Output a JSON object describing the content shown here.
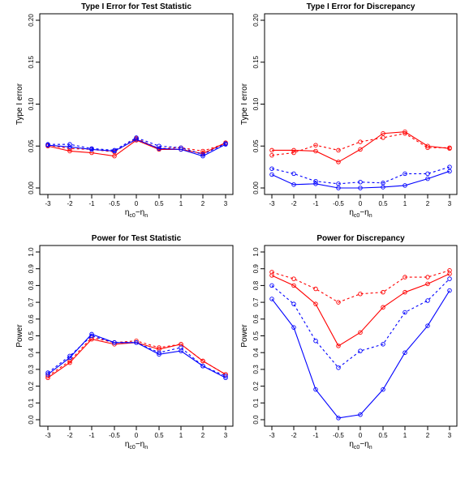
{
  "chart_data": [
    {
      "type": "line",
      "title": "Type I Error for Test Statistic",
      "xlabel": "η_c0−η_n",
      "ylabel": "Type I error",
      "x": [
        -3,
        -2,
        -1,
        -0.5,
        0,
        0.5,
        1,
        2,
        3
      ],
      "x_tick_labels": [
        "-3",
        "-2",
        "-1",
        "-0.5",
        "0",
        "0.5",
        "1",
        "2",
        "3"
      ],
      "ylim": [
        0,
        0.2
      ],
      "y_ticks": [
        0.0,
        0.05,
        0.1,
        0.15,
        0.2
      ],
      "y_tick_labels": [
        "0.00",
        "0.05",
        "0.10",
        "0.15",
        "0.20"
      ],
      "grid": false,
      "series": [
        {
          "color": "#ff0000",
          "line_style": "solid",
          "values": [
            0.05,
            0.044,
            0.042,
            0.038,
            0.057,
            0.046,
            0.046,
            0.041,
            0.054
          ]
        },
        {
          "color": "#ff0000",
          "line_style": "dashed",
          "values": [
            0.051,
            0.047,
            0.046,
            0.043,
            0.059,
            0.047,
            0.048,
            0.044,
            0.053
          ]
        },
        {
          "color": "#0000ff",
          "line_style": "solid",
          "values": [
            0.051,
            0.049,
            0.046,
            0.044,
            0.058,
            0.047,
            0.046,
            0.038,
            0.052
          ]
        },
        {
          "color": "#0000ff",
          "line_style": "dashed",
          "values": [
            0.052,
            0.052,
            0.047,
            0.045,
            0.06,
            0.05,
            0.048,
            0.04,
            0.053
          ]
        }
      ]
    },
    {
      "type": "line",
      "title": "Type I Error for Discrepancy",
      "xlabel": "η_c0−η_n",
      "ylabel": "Type I error",
      "x": [
        -3,
        -2,
        -1,
        -0.5,
        0,
        0.5,
        1,
        2,
        3
      ],
      "x_tick_labels": [
        "-3",
        "-2",
        "-1",
        "-0.5",
        "0",
        "0.5",
        "1",
        "2",
        "3"
      ],
      "ylim": [
        0,
        0.2
      ],
      "y_ticks": [
        0.0,
        0.05,
        0.1,
        0.15,
        0.2
      ],
      "y_tick_labels": [
        "0.00",
        "0.05",
        "0.10",
        "0.15",
        "0.20"
      ],
      "grid": false,
      "series": [
        {
          "color": "#ff0000",
          "line_style": "solid",
          "values": [
            0.045,
            0.045,
            0.044,
            0.031,
            0.046,
            0.065,
            0.067,
            0.05,
            0.047
          ]
        },
        {
          "color": "#ff0000",
          "line_style": "dashed",
          "values": [
            0.039,
            0.042,
            0.051,
            0.045,
            0.055,
            0.06,
            0.065,
            0.048,
            0.048
          ]
        },
        {
          "color": "#0000ff",
          "line_style": "solid",
          "values": [
            0.016,
            0.004,
            0.005,
            0.0,
            0.0,
            0.001,
            0.003,
            0.011,
            0.02
          ]
        },
        {
          "color": "#0000ff",
          "line_style": "dashed",
          "values": [
            0.023,
            0.017,
            0.008,
            0.005,
            0.007,
            0.006,
            0.017,
            0.017,
            0.025
          ]
        }
      ]
    },
    {
      "type": "line",
      "title": "Power for Test Statistic",
      "xlabel": "η_c0−η_n",
      "ylabel": "Power",
      "x": [
        -3,
        -2,
        -1,
        -0.5,
        0,
        0.5,
        1,
        2,
        3
      ],
      "x_tick_labels": [
        "-3",
        "-2",
        "-1",
        "-0.5",
        "0",
        "0.5",
        "1",
        "2",
        "3"
      ],
      "ylim": [
        0,
        1
      ],
      "y_ticks": [
        0.0,
        0.1,
        0.2,
        0.3,
        0.4,
        0.5,
        0.6,
        0.7,
        0.8,
        0.9,
        1.0
      ],
      "y_tick_labels": [
        "0.0",
        "0.1",
        "0.2",
        "0.3",
        "0.4",
        "0.5",
        "0.6",
        "0.7",
        "0.8",
        "0.9",
        "1.0"
      ],
      "grid": false,
      "series": [
        {
          "color": "#ff0000",
          "line_style": "solid",
          "values": [
            0.25,
            0.34,
            0.48,
            0.45,
            0.46,
            0.42,
            0.45,
            0.35,
            0.27
          ]
        },
        {
          "color": "#ff0000",
          "line_style": "dashed",
          "values": [
            0.26,
            0.35,
            0.49,
            0.46,
            0.47,
            0.43,
            0.45,
            0.35,
            0.27
          ]
        },
        {
          "color": "#0000ff",
          "line_style": "solid",
          "values": [
            0.27,
            0.37,
            0.51,
            0.46,
            0.46,
            0.39,
            0.41,
            0.32,
            0.25
          ]
        },
        {
          "color": "#0000ff",
          "line_style": "dashed",
          "values": [
            0.28,
            0.38,
            0.5,
            0.46,
            0.46,
            0.4,
            0.43,
            0.32,
            0.26
          ]
        }
      ]
    },
    {
      "type": "line",
      "title": "Power for Discrepancy",
      "xlabel": "η_c0−η_n",
      "ylabel": "Power",
      "x": [
        -3,
        -2,
        -1,
        -0.5,
        0,
        0.5,
        1,
        2,
        3
      ],
      "x_tick_labels": [
        "-3",
        "-2",
        "-1",
        "-0.5",
        "0",
        "0.5",
        "1",
        "2",
        "3"
      ],
      "ylim": [
        0,
        1
      ],
      "y_ticks": [
        0.0,
        0.1,
        0.2,
        0.3,
        0.4,
        0.5,
        0.6,
        0.7,
        0.8,
        0.9,
        1.0
      ],
      "y_tick_labels": [
        "0.0",
        "0.1",
        "0.2",
        "0.3",
        "0.4",
        "0.5",
        "0.6",
        "0.7",
        "0.8",
        "0.9",
        "1.0"
      ],
      "grid": false,
      "series": [
        {
          "color": "#ff0000",
          "line_style": "solid",
          "values": [
            0.86,
            0.8,
            0.69,
            0.44,
            0.52,
            0.67,
            0.76,
            0.81,
            0.87
          ]
        },
        {
          "color": "#ff0000",
          "line_style": "dashed",
          "values": [
            0.88,
            0.84,
            0.78,
            0.7,
            0.75,
            0.76,
            0.85,
            0.85,
            0.89
          ]
        },
        {
          "color": "#0000ff",
          "line_style": "solid",
          "values": [
            0.72,
            0.55,
            0.18,
            0.01,
            0.03,
            0.18,
            0.4,
            0.56,
            0.77
          ]
        },
        {
          "color": "#0000ff",
          "line_style": "dashed",
          "values": [
            0.8,
            0.69,
            0.47,
            0.31,
            0.41,
            0.45,
            0.64,
            0.71,
            0.84
          ]
        }
      ]
    }
  ]
}
